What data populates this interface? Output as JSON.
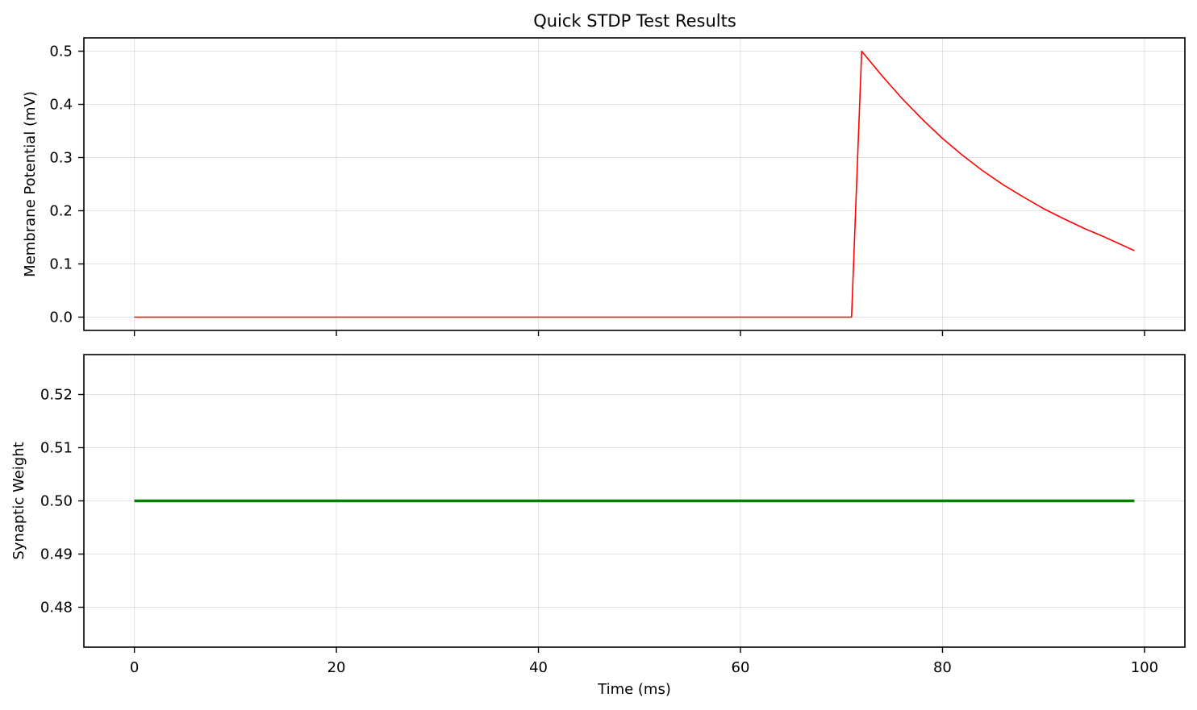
{
  "chart_data": [
    {
      "type": "line",
      "title": "Quick STDP Test Results",
      "xlabel": "",
      "ylabel": "Membrane Potential (mV)",
      "xlim": [
        -5,
        104
      ],
      "ylim": [
        -0.025,
        0.525
      ],
      "xticks": [
        0,
        20,
        40,
        60,
        80,
        100
      ],
      "xtick_labels_shown": false,
      "yticks": [
        0.0,
        0.1,
        0.2,
        0.3,
        0.4,
        0.5
      ],
      "ytick_labels": [
        "0.0",
        "0.1",
        "0.2",
        "0.3",
        "0.4",
        "0.5"
      ],
      "grid": true,
      "series": [
        {
          "color": "#ff0000",
          "line_width": "thin",
          "x": [
            0,
            71,
            72,
            74,
            76,
            78,
            80,
            82,
            84,
            86,
            88,
            90,
            92,
            94,
            96,
            99
          ],
          "y": [
            0.0,
            0.0,
            0.5,
            0.454,
            0.411,
            0.372,
            0.336,
            0.304,
            0.275,
            0.249,
            0.226,
            0.204,
            0.185,
            0.167,
            0.151,
            0.125
          ]
        }
      ]
    },
    {
      "type": "line",
      "title": "",
      "xlabel": "Time (ms)",
      "ylabel": "Synaptic Weight",
      "xlim": [
        -5,
        104
      ],
      "ylim": [
        0.4725,
        0.5275
      ],
      "xticks": [
        0,
        20,
        40,
        60,
        80,
        100
      ],
      "xtick_labels": [
        "0",
        "20",
        "40",
        "60",
        "80",
        "100"
      ],
      "xtick_labels_shown": true,
      "yticks": [
        0.48,
        0.49,
        0.5,
        0.51,
        0.52
      ],
      "ytick_labels": [
        "0.48",
        "0.49",
        "0.50",
        "0.51",
        "0.52"
      ],
      "grid": true,
      "series": [
        {
          "color": "#008000",
          "line_width": "thick",
          "x": [
            0,
            99
          ],
          "y": [
            0.5,
            0.5
          ]
        }
      ]
    }
  ]
}
